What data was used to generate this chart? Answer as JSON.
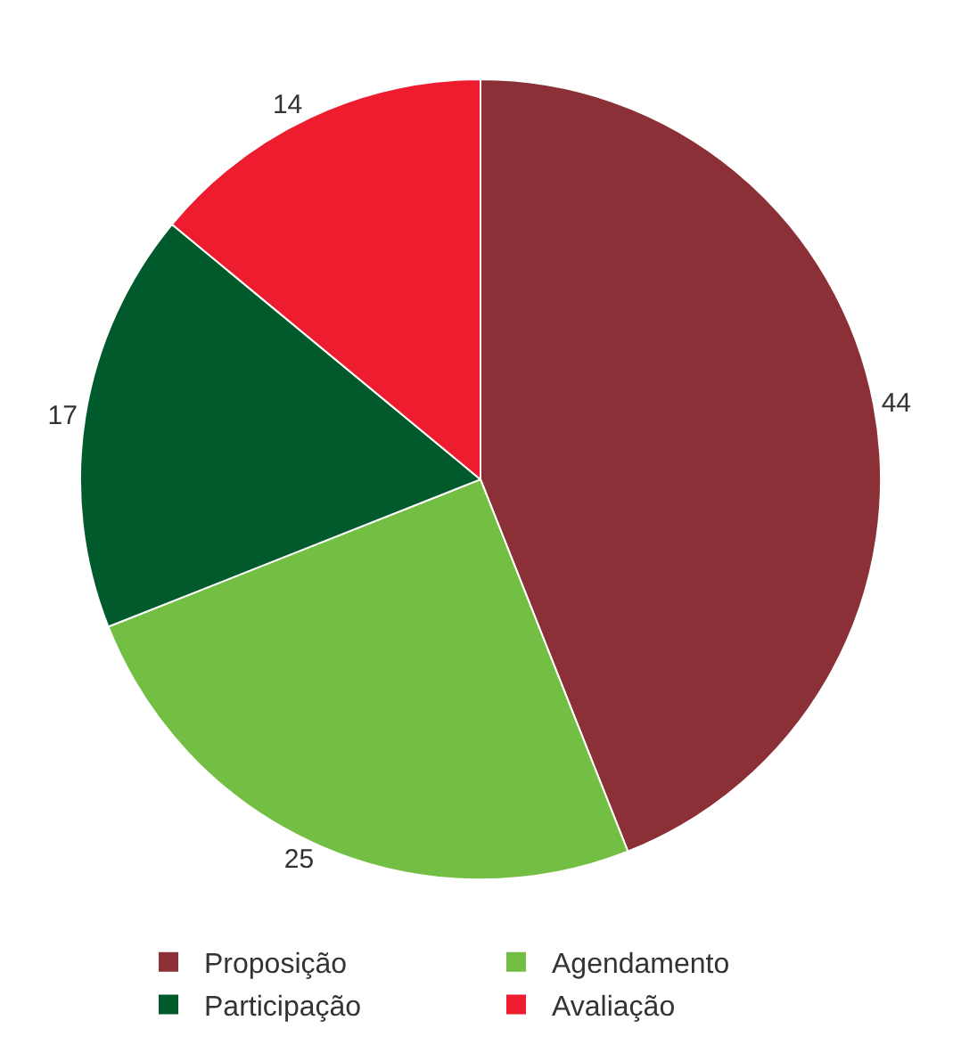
{
  "chart_data": {
    "type": "pie",
    "categories": [
      "Proposição",
      "Agendamento",
      "Participação",
      "Avaliação"
    ],
    "values": [
      44,
      25,
      17,
      14
    ],
    "colors": [
      "#8b3036",
      "#72bf44",
      "#005a2b",
      "#ed1c2e"
    ],
    "data_labels": true,
    "legend": "bottom"
  }
}
